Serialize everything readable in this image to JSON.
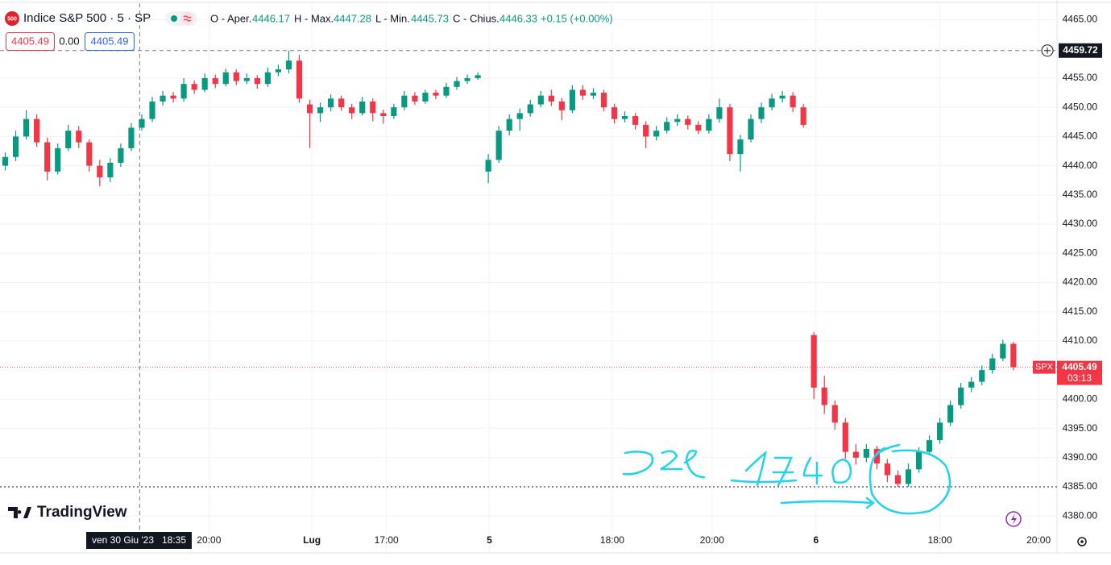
{
  "chart_data": {
    "type": "candlestick",
    "symbol_icon": "500",
    "title": "Indice S&P 500 · 5 · SP",
    "ohlc_header": {
      "open_label": "O - Aper.",
      "open": "4446.17",
      "high_label": "H - Max.",
      "high": "4447.28",
      "low_label": "L - Min.",
      "low": "4445.73",
      "close_label": "C - Chius.",
      "close": "4446.33",
      "change": "+0.15 (+0.00%)"
    },
    "order_boxes": [
      "4405.49",
      "0.00",
      "4405.49"
    ],
    "logo": "TradingView",
    "up_color": "#089981",
    "down_color": "#f23645",
    "xlim": [
      -0.5,
      100
    ],
    "xticks": [
      {
        "value": 19.4,
        "label": "20:00"
      },
      {
        "value": 29.2,
        "label": "Lug"
      },
      {
        "value": 36.3,
        "label": "17:00"
      },
      {
        "value": 46.1,
        "label": "5"
      },
      {
        "value": 57.8,
        "label": "18:00"
      },
      {
        "value": 67.3,
        "label": "20:00"
      },
      {
        "value": 77.2,
        "label": "6"
      },
      {
        "value": 89,
        "label": "18:00"
      },
      {
        "value": 98.4,
        "label": "20:00"
      }
    ],
    "ylim": [
      4377,
      4467
    ],
    "yticks": [
      {
        "value": 4380,
        "label": "4380.00"
      },
      {
        "value": 4385,
        "label": "4385.00"
      },
      {
        "value": 4390,
        "label": "4390.00"
      },
      {
        "value": 4395,
        "label": "4395.00"
      },
      {
        "value": 4400,
        "label": "4400.00"
      },
      {
        "value": 4405,
        "label": "4405.00"
      },
      {
        "value": 4410,
        "label": "4410.00"
      },
      {
        "value": 4415,
        "label": "4415.00"
      },
      {
        "value": 4420,
        "label": "4420.00"
      },
      {
        "value": 4425,
        "label": "4425.00"
      },
      {
        "value": 4430,
        "label": "4430.00"
      },
      {
        "value": 4435,
        "label": "4435.00"
      },
      {
        "value": 4440,
        "label": "4440.00"
      },
      {
        "value": 4445,
        "label": "4445.00"
      },
      {
        "value": 4450,
        "label": "4450.00"
      },
      {
        "value": 4455,
        "label": "4455.00"
      },
      {
        "value": 4460,
        "label": "4460.00"
      },
      {
        "value": 4465,
        "label": "4465.00"
      }
    ],
    "grid": true,
    "price_line": 4385,
    "crosshair": {
      "x": 12.8,
      "price": {
        "value": 4459.72,
        "label": "4459.72"
      },
      "date": "ven 30 Giu '23",
      "time": "18:35"
    },
    "last": {
      "value": 4405.49,
      "label": "4405.49",
      "symbol": "SPX",
      "countdown": "03:13"
    },
    "candles": [
      [
        4440,
        4442.3,
        4439.2,
        4441.5
      ],
      [
        4441.5,
        4446,
        4440.8,
        4445
      ],
      [
        4445,
        4449.5,
        4444.5,
        4448
      ],
      [
        4448,
        4448.8,
        4443.2,
        4444
      ],
      [
        4444,
        4444.8,
        4437.5,
        4439
      ],
      [
        4439,
        4443.8,
        4438.5,
        4443
      ],
      [
        4443,
        4447,
        4442.5,
        4446
      ],
      [
        4446,
        4446.8,
        4443,
        4444
      ],
      [
        4444,
        4444.5,
        4439,
        4440
      ],
      [
        4440,
        4441,
        4436.5,
        4438
      ],
      [
        4438,
        4441.3,
        4437.2,
        4440.5
      ],
      [
        4440.5,
        4443.8,
        4439.8,
        4443
      ],
      [
        4443,
        4447.3,
        4442.5,
        4446.5
      ],
      [
        4446.5,
        4448.8,
        4446,
        4448
      ],
      [
        4448,
        4451.8,
        4447.5,
        4451
      ],
      [
        4451,
        4452.8,
        4450.3,
        4452
      ],
      [
        4452,
        4452.6,
        4450.8,
        4451.5
      ],
      [
        4451.5,
        4455,
        4451,
        4454
      ],
      [
        4454,
        4454.6,
        4452.3,
        4453
      ],
      [
        4453,
        4455.8,
        4452.6,
        4455
      ],
      [
        4455,
        4455.6,
        4453.3,
        4454
      ],
      [
        4454,
        4456.6,
        4453.6,
        4456
      ],
      [
        4456,
        4456.5,
        4453.8,
        4454.5
      ],
      [
        4454.5,
        4455.8,
        4454,
        4455
      ],
      [
        4455,
        4455.5,
        4453.2,
        4454
      ],
      [
        4454,
        4456.8,
        4453.5,
        4456
      ],
      [
        4456,
        4457.3,
        4455.3,
        4456.5
      ],
      [
        4456.5,
        4459.7,
        4455.8,
        4458
      ],
      [
        4458,
        4459,
        4450.8,
        4451.5
      ],
      [
        4450.5,
        4451.3,
        4443,
        4449
      ],
      [
        4449,
        4450.8,
        4447.5,
        4450
      ],
      [
        4450,
        4452.2,
        4449.3,
        4451.5
      ],
      [
        4451.5,
        4452,
        4449.4,
        4450
      ],
      [
        4450,
        4450.6,
        4448,
        4449
      ],
      [
        4449,
        4451.8,
        4448.6,
        4451
      ],
      [
        4451,
        4451.5,
        4447.6,
        4449
      ],
      [
        4449,
        4449.6,
        4447.2,
        4448.5
      ],
      [
        4448.5,
        4450.6,
        4448,
        4450
      ],
      [
        4450,
        4452.8,
        4449.5,
        4452
      ],
      [
        4452,
        4452.6,
        4450.4,
        4451
      ],
      [
        4451,
        4453,
        4450.6,
        4452.5
      ],
      [
        4452.5,
        4453,
        4451.4,
        4452
      ],
      [
        4452,
        4454.2,
        4451.6,
        4453.5
      ],
      [
        4453.5,
        4455.2,
        4453,
        4454.5
      ],
      [
        4454.5,
        4455.6,
        4454,
        4455
      ],
      [
        4455,
        4456,
        4454.7,
        4455.5
      ],
      [
        4439,
        4442,
        4437,
        4441
      ],
      [
        4441,
        4446.8,
        4440.5,
        4446
      ],
      [
        4446,
        4448.8,
        4445.2,
        4448
      ],
      [
        4448,
        4449.8,
        4446,
        4449
      ],
      [
        4449,
        4451.3,
        4448.4,
        4450.5
      ],
      [
        4450.5,
        4452.8,
        4450,
        4452
      ],
      [
        4452,
        4453,
        4450.2,
        4451
      ],
      [
        4451,
        4451.6,
        4447.8,
        4449.5
      ],
      [
        4449.5,
        4453.8,
        4449,
        4453
      ],
      [
        4453,
        4453.8,
        4451.3,
        4452
      ],
      [
        4452,
        4453.3,
        4451.4,
        4452.5
      ],
      [
        4452.5,
        4453,
        4449.3,
        4450
      ],
      [
        4450,
        4450.6,
        4447.2,
        4448
      ],
      [
        4448,
        4449.3,
        4447.4,
        4448.5
      ],
      [
        4448.5,
        4449,
        4446.2,
        4447
      ],
      [
        4447,
        4447.6,
        4443,
        4445
      ],
      [
        4445,
        4446.8,
        4444.3,
        4446
      ],
      [
        4446,
        4448.3,
        4445.5,
        4447.5
      ],
      [
        4447.5,
        4448.8,
        4446.8,
        4448
      ],
      [
        4448,
        4448.6,
        4446.2,
        4447
      ],
      [
        4447,
        4447.6,
        4445.4,
        4446
      ],
      [
        4446,
        4448.8,
        4445.5,
        4448
      ],
      [
        4448,
        4451.5,
        4447.4,
        4450
      ],
      [
        4450,
        4450.6,
        4440.8,
        4442
      ],
      [
        4442,
        4445.3,
        4439,
        4444.5
      ],
      [
        4444.5,
        4448.8,
        4444,
        4448
      ],
      [
        4448,
        4450.8,
        4447.3,
        4450
      ],
      [
        4450,
        4452.3,
        4449.5,
        4451.5
      ],
      [
        4451.5,
        4452.8,
        4450.8,
        4452
      ],
      [
        4452,
        4452.6,
        4449.2,
        4450
      ],
      [
        4450,
        4450.6,
        4446.5,
        4447
      ],
      [
        4411,
        4411.5,
        4400,
        4402
      ],
      [
        4402,
        4404,
        4397.5,
        4399
      ],
      [
        4399,
        4399.8,
        4394.8,
        4396
      ],
      [
        4396,
        4396.8,
        4389.8,
        4391
      ],
      [
        4391,
        4392.3,
        4388.8,
        4390
      ],
      [
        4390,
        4392.3,
        4389.2,
        4391.5
      ],
      [
        4391.5,
        4392,
        4388,
        4389
      ],
      [
        4389,
        4389.8,
        4385.8,
        4387
      ],
      [
        4387,
        4387.8,
        4385,
        4385.5
      ],
      [
        4385.5,
        4389,
        4385,
        4388
      ],
      [
        4388,
        4391.8,
        4387.4,
        4391
      ],
      [
        4391,
        4393.8,
        4390.4,
        4393
      ],
      [
        4393,
        4396.8,
        4392.4,
        4396
      ],
      [
        4396,
        4399.8,
        4395.4,
        4399
      ],
      [
        4399,
        4402.8,
        4398.4,
        4402
      ],
      [
        4402,
        4403.8,
        4401.2,
        4403
      ],
      [
        4403,
        4405.8,
        4402.4,
        4405
      ],
      [
        4405,
        4407.8,
        4404.4,
        4407
      ],
      [
        4407,
        4410.2,
        4406.5,
        4409.5
      ],
      [
        4409.5,
        4409.8,
        4405,
        4405.49
      ]
    ]
  }
}
